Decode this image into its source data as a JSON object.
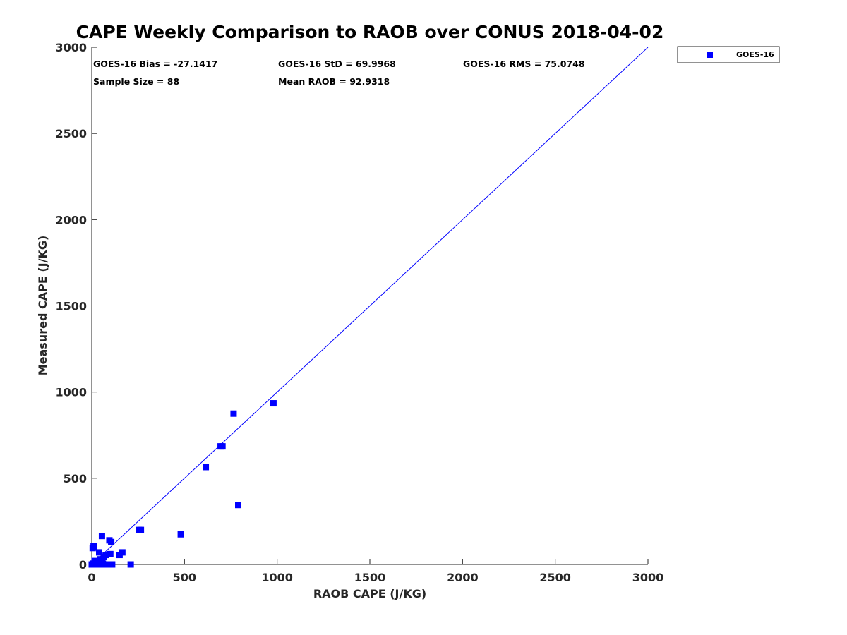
{
  "chart_data": {
    "type": "scatter",
    "title": "CAPE Weekly Comparison to RAOB over CONUS 2018-04-02",
    "xlabel": "RAOB CAPE (J/KG)",
    "ylabel": "Measured CAPE (J/KG)",
    "xlim": [
      0,
      3000
    ],
    "ylim": [
      0,
      3000
    ],
    "xticks": [
      0,
      500,
      1000,
      1500,
      2000,
      2500,
      3000
    ],
    "yticks": [
      0,
      500,
      1000,
      1500,
      2000,
      2500,
      3000
    ],
    "grid": false,
    "legend_position": "outside-top-right",
    "legend": [
      "GOES-16"
    ],
    "reference_line": {
      "name": "one-to-one line",
      "from": [
        0,
        0
      ],
      "to": [
        3000,
        3000
      ],
      "color": "#0000ff"
    },
    "stats": [
      "GOES-16 Bias = -27.1417",
      "GOES-16 StD = 69.9968",
      "GOES-16 RMS = 75.0748",
      "Sample Size = 88",
      "Mean RAOB = 92.9318"
    ],
    "series": [
      {
        "name": "GOES-16",
        "color": "#0000ff",
        "marker": "square",
        "x": [
          0,
          5,
          15,
          25,
          40,
          50,
          60,
          70,
          80,
          90,
          100,
          110,
          5,
          10,
          15,
          30,
          45,
          55,
          75,
          100,
          40,
          20,
          8,
          12,
          45,
          55,
          65,
          95,
          105,
          60,
          150,
          165,
          210,
          255,
          265,
          480,
          615,
          695,
          705,
          765,
          790,
          980
        ],
        "y": [
          0,
          0,
          0,
          0,
          0,
          0,
          0,
          0,
          0,
          0,
          0,
          0,
          95,
          105,
          20,
          15,
          30,
          15,
          55,
          60,
          70,
          10,
          5,
          100,
          20,
          165,
          45,
          140,
          130,
          5,
          55,
          70,
          0,
          200,
          200,
          175,
          565,
          685,
          685,
          875,
          345,
          935
        ]
      }
    ]
  }
}
